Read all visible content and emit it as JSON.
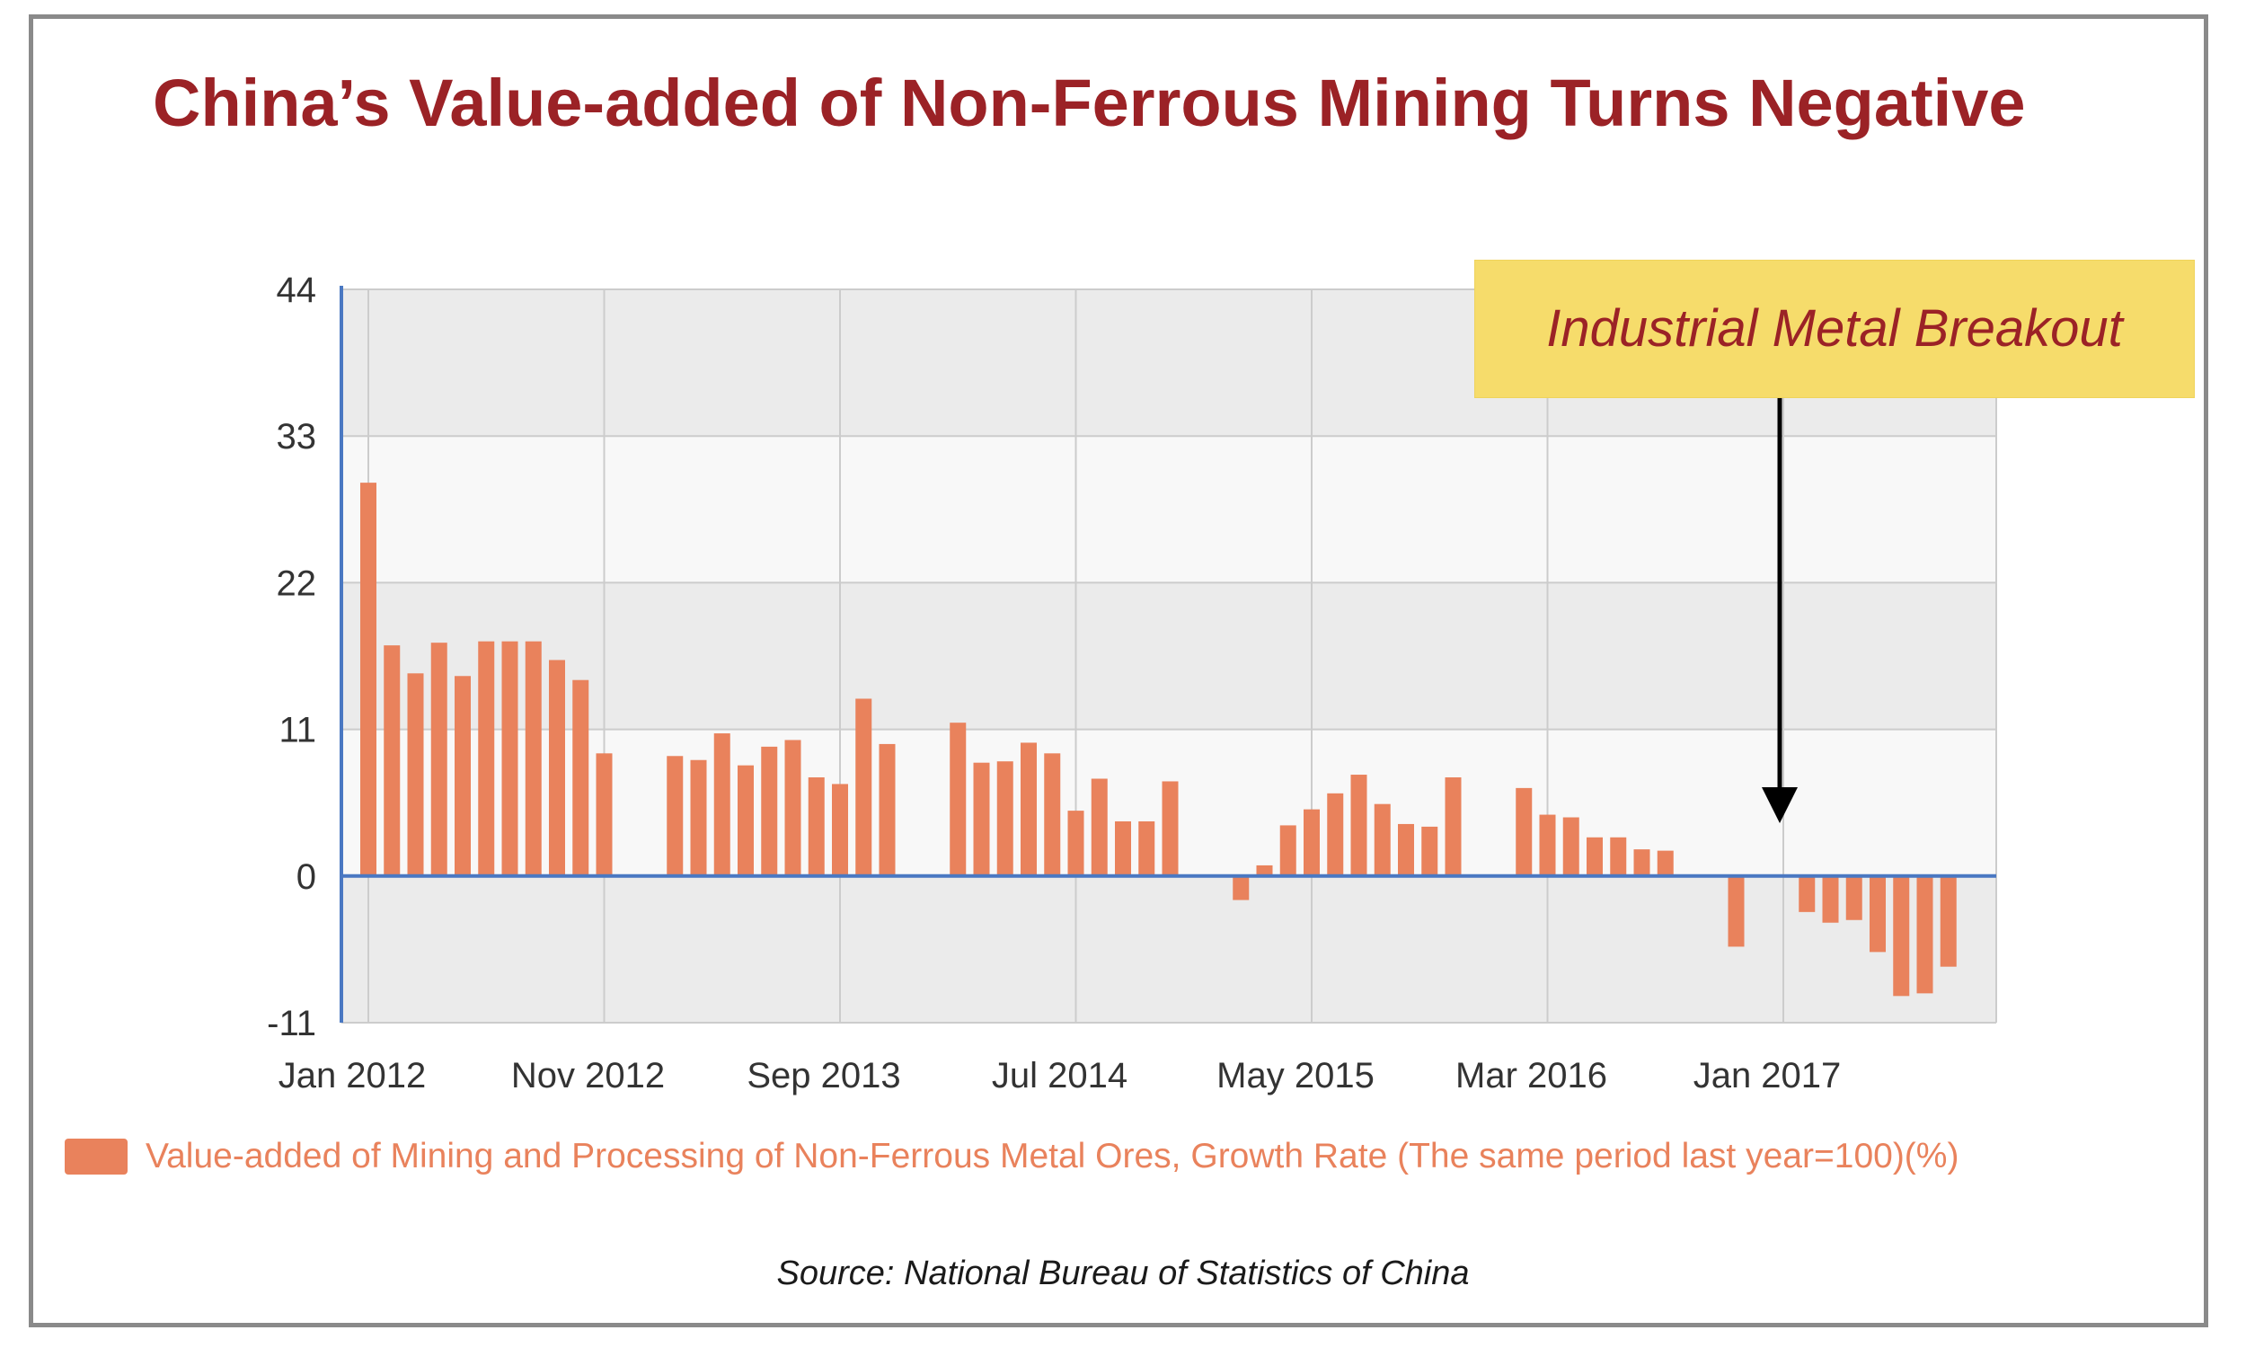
{
  "title": "China’s Value-added of Non-Ferrous Mining Turns Negative",
  "callout": {
    "text": "Industrial Metal Breakout",
    "points_to_index": 60
  },
  "source": "Source: National Bureau of Statistics of China",
  "colors": {
    "title": "#9b2226",
    "bar": "#e9825c",
    "callout_bg": "#f6dc6b",
    "axis": "#4a78c2",
    "grid": "#cccccc",
    "plot_bg_band": "#ebebeb",
    "frame": "#8a8a8a"
  },
  "chart_data": {
    "type": "bar",
    "title": "China’s Value-added of Non-Ferrous Mining Turns Negative",
    "xlabel": "",
    "ylabel": "",
    "ylim": [
      -11,
      44
    ],
    "yticks": [
      44,
      33,
      22,
      11,
      0,
      -11
    ],
    "grid": true,
    "legend_position": "bottom",
    "x_tick_labels": [
      {
        "label": "Jan 2012",
        "index": 0
      },
      {
        "label": "Nov 2012",
        "index": 10
      },
      {
        "label": "Sep 2013",
        "index": 20
      },
      {
        "label": "Jul 2014",
        "index": 30
      },
      {
        "label": "May 2015",
        "index": 40
      },
      {
        "label": "Mar 2016",
        "index": 50
      },
      {
        "label": "Jan 2017",
        "index": 60
      }
    ],
    "series": [
      {
        "name": "Value-added of Mining and Processing of Non-Ferrous Metal Ores, Growth Rate (The same period last year=100)(%)",
        "values": [
          29.5,
          17.3,
          15.2,
          17.5,
          15.0,
          17.6,
          17.6,
          17.6,
          16.2,
          14.7,
          9.2,
          null,
          null,
          9.0,
          8.7,
          10.7,
          8.3,
          9.7,
          10.2,
          7.4,
          6.9,
          13.3,
          9.9,
          null,
          null,
          11.5,
          8.5,
          8.6,
          10.0,
          9.2,
          4.9,
          7.3,
          4.1,
          4.1,
          7.1,
          null,
          null,
          -1.8,
          0.8,
          3.8,
          5.0,
          6.2,
          7.6,
          5.4,
          3.9,
          3.7,
          7.4,
          null,
          null,
          6.6,
          4.6,
          4.4,
          2.9,
          2.9,
          2.0,
          1.9,
          null,
          null,
          -5.3,
          null,
          null,
          -2.7,
          -3.5,
          -3.3,
          -5.7,
          -9.0,
          -8.8,
          -6.8
        ]
      }
    ]
  }
}
